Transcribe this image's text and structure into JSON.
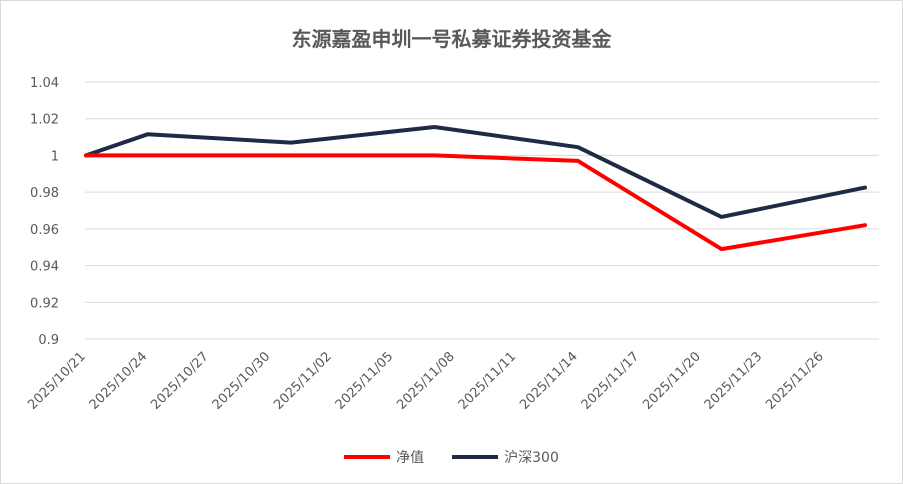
{
  "chart_data": {
    "type": "line",
    "title": "东源嘉盈申圳一号私募证券投资基金",
    "x": [
      "2025/10/21",
      "2025/10/24",
      "2025/10/27",
      "2025/10/30",
      "2025/11/02",
      "2025/11/05",
      "2025/11/08",
      "2025/11/11",
      "2025/11/14",
      "2025/11/17",
      "2025/11/20",
      "2025/11/23",
      "2025/11/26"
    ],
    "yticks": [
      "0.9",
      "0.92",
      "0.94",
      "0.96",
      "0.98",
      "1",
      "1.02",
      "1.04"
    ],
    "ylim": [
      0.9,
      1.04
    ],
    "grid": true,
    "legend_position": "bottom",
    "series": [
      {
        "name": "净值",
        "color": "#ff0000",
        "points": [
          [
            "2025/10/21",
            1.0
          ],
          [
            "2025/11/07",
            1.0
          ],
          [
            "2025/11/14",
            0.997
          ],
          [
            "2025/11/21",
            0.949
          ],
          [
            "2025/11/28",
            0.962
          ]
        ]
      },
      {
        "name": "沪深300",
        "color": "#1f2a44",
        "points": [
          [
            "2025/10/21",
            1.0
          ],
          [
            "2025/10/24",
            1.0115
          ],
          [
            "2025/10/31",
            1.007
          ],
          [
            "2025/11/07",
            1.0155
          ],
          [
            "2025/11/14",
            1.0045
          ],
          [
            "2025/11/21",
            0.9665
          ],
          [
            "2025/11/28",
            0.9825
          ]
        ]
      }
    ]
  }
}
